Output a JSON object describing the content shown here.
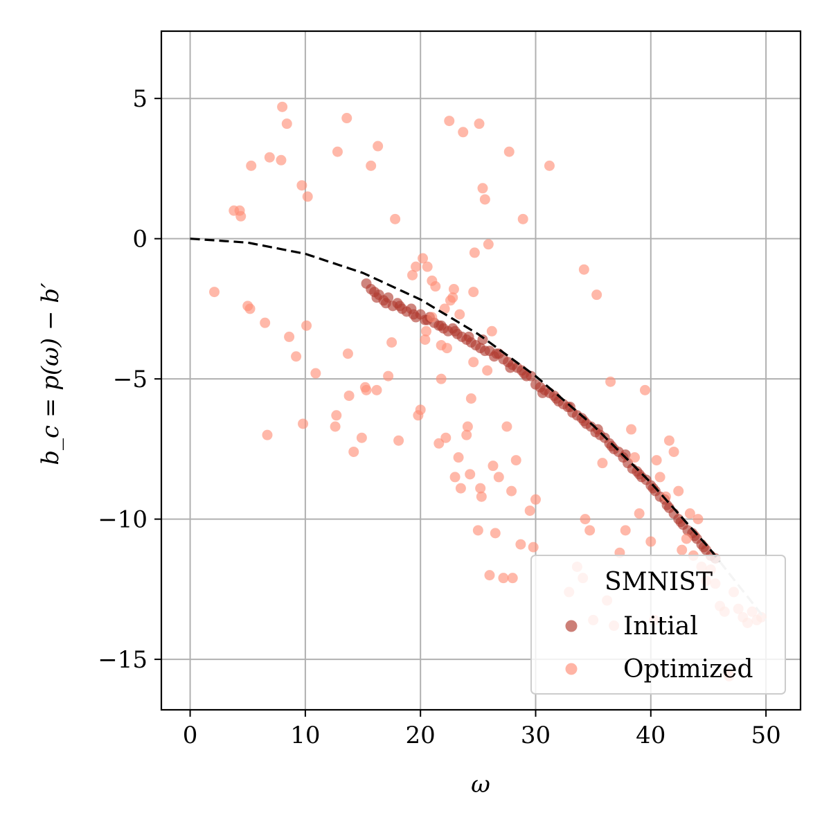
{
  "chart_data": {
    "type": "scatter",
    "xlabel": "ω",
    "ylabel": "b_c = p(ω) − b′",
    "xlim": [
      -2.5,
      53
    ],
    "ylim": [
      -16.8,
      7.4
    ],
    "xticks": [
      0,
      10,
      20,
      30,
      40,
      50
    ],
    "yticks": [
      5,
      0,
      -5,
      -10,
      -15
    ],
    "xtick_labels": [
      "0",
      "10",
      "20",
      "30",
      "40",
      "50"
    ],
    "ytick_labels": [
      "5",
      "0",
      "−5",
      "−10",
      "−15"
    ],
    "grid": true,
    "legend": {
      "title": "SMNIST",
      "placement": "lower-right",
      "entries": [
        "Initial",
        "Optimized"
      ]
    },
    "reference_curve": {
      "style": "dashed",
      "color": "#000000",
      "faded_color": "#c0c0c0",
      "x": [
        0,
        5,
        10,
        15,
        20,
        25,
        30,
        35,
        40,
        45,
        50
      ],
      "y": [
        0,
        -0.14,
        -0.54,
        -1.22,
        -2.17,
        -3.4,
        -4.9,
        -6.66,
        -8.7,
        -11.0,
        -13.6
      ]
    },
    "series": [
      {
        "name": "Initial",
        "color": "#b03a2e",
        "x": [
          15.3,
          15.7,
          16.0,
          16.4,
          16.8,
          17.2,
          17.6,
          18.0,
          18.4,
          18.8,
          19.2,
          19.6,
          20.0,
          20.4,
          20.8,
          21.2,
          21.6,
          22.0,
          22.4,
          22.8,
          23.2,
          23.6,
          24.0,
          24.4,
          24.8,
          25.2,
          25.6,
          26.0,
          26.4,
          26.8,
          27.2,
          27.6,
          28.0,
          28.4,
          28.8,
          29.2,
          29.6,
          30.0,
          30.4,
          30.8,
          31.2,
          31.6,
          32.0,
          32.4,
          32.8,
          33.2,
          33.6,
          34.0,
          34.4,
          34.8,
          35.2,
          35.6,
          36.0,
          36.4,
          36.8,
          37.2,
          37.6,
          38.0,
          38.4,
          38.8,
          39.2,
          39.6,
          40.0,
          40.4,
          40.8,
          41.2,
          41.6,
          42.0,
          42.4,
          42.8,
          43.2,
          43.6,
          44.0,
          44.4,
          44.8,
          45.2,
          45.6,
          16.2,
          17.0,
          18.2,
          19.4,
          20.6,
          21.8,
          23.0,
          24.2,
          25.4,
          26.6,
          27.8,
          29.0,
          30.6,
          31.8,
          33.0,
          34.2,
          35.4,
          36.6,
          37.8,
          39.0,
          40.2,
          41.4,
          42.6,
          43.8,
          44.6
        ],
        "y": [
          -1.6,
          -1.8,
          -1.9,
          -2.0,
          -2.2,
          -2.1,
          -2.4,
          -2.3,
          -2.5,
          -2.6,
          -2.5,
          -2.8,
          -2.7,
          -2.9,
          -2.8,
          -3.0,
          -3.1,
          -3.2,
          -3.3,
          -3.2,
          -3.4,
          -3.5,
          -3.6,
          -3.7,
          -3.8,
          -3.9,
          -4.0,
          -4.0,
          -4.2,
          -4.1,
          -4.3,
          -4.4,
          -4.5,
          -4.6,
          -4.7,
          -4.9,
          -4.9,
          -5.2,
          -5.3,
          -5.4,
          -5.5,
          -5.6,
          -5.8,
          -5.9,
          -6.0,
          -6.2,
          -6.3,
          -6.4,
          -6.6,
          -6.7,
          -6.9,
          -7.0,
          -7.1,
          -7.3,
          -7.5,
          -7.6,
          -7.8,
          -8.0,
          -8.2,
          -8.3,
          -8.5,
          -8.6,
          -8.8,
          -9.0,
          -9.2,
          -9.3,
          -9.6,
          -9.8,
          -10.0,
          -10.2,
          -10.4,
          -10.5,
          -10.7,
          -10.9,
          -11.1,
          -11.3,
          -11.4,
          -2.1,
          -2.3,
          -2.4,
          -2.7,
          -2.9,
          -3.1,
          -3.3,
          -3.5,
          -3.6,
          -4.1,
          -4.6,
          -4.8,
          -5.5,
          -5.7,
          -6.0,
          -6.5,
          -6.8,
          -7.4,
          -7.7,
          -8.4,
          -8.9,
          -9.5,
          -10.1,
          -10.6,
          -11.0
        ]
      },
      {
        "name": "Optimized",
        "color": "#ff8c75",
        "x": [
          2.1,
          3.8,
          4.3,
          4.4,
          5.0,
          5.2,
          5.3,
          6.5,
          6.7,
          6.9,
          7.9,
          8.0,
          8.4,
          8.6,
          9.2,
          9.7,
          9.8,
          10.1,
          10.2,
          10.9,
          12.6,
          12.7,
          12.8,
          13.6,
          13.7,
          13.8,
          14.2,
          14.9,
          15.2,
          15.3,
          15.7,
          16.2,
          16.3,
          17.2,
          17.5,
          17.8,
          18.1,
          19.3,
          19.6,
          19.8,
          20.0,
          20.2,
          20.4,
          20.6,
          21.0,
          21.3,
          21.6,
          21.8,
          22.2,
          22.3,
          22.5,
          22.8,
          22.9,
          23.0,
          23.3,
          23.5,
          23.7,
          24.0,
          24.1,
          24.3,
          24.4,
          24.6,
          24.7,
          25.0,
          25.1,
          25.2,
          25.3,
          25.4,
          25.6,
          25.9,
          26.0,
          26.3,
          26.5,
          26.8,
          27.2,
          27.5,
          27.7,
          27.9,
          28.0,
          28.3,
          28.7,
          28.9,
          29.5,
          29.8,
          30.0,
          31.2,
          32.9,
          33.6,
          34.1,
          34.2,
          34.3,
          34.7,
          35.0,
          35.3,
          35.8,
          36.2,
          36.5,
          36.8,
          37.3,
          37.8,
          38.3,
          38.6,
          39.0,
          39.5,
          40.0,
          40.3,
          40.5,
          40.8,
          41.3,
          41.6,
          42.0,
          42.4,
          42.7,
          43.1,
          43.4,
          43.7,
          44.1,
          44.4,
          44.8,
          45.2,
          45.6,
          46.0,
          46.4,
          46.8,
          47.2,
          47.6,
          48.0,
          48.4,
          48.8,
          49.2,
          49.6,
          21.0,
          21.8,
          22.6,
          23.4,
          24.6,
          25.8,
          26.2,
          46.7,
          20.5,
          22.1
        ],
        "y": [
          -1.9,
          1.0,
          1.0,
          0.8,
          -2.4,
          -2.5,
          2.6,
          -3.0,
          -7.0,
          2.9,
          2.8,
          4.7,
          4.1,
          -3.5,
          -4.2,
          1.9,
          -6.6,
          -3.1,
          1.5,
          -4.8,
          -6.7,
          -6.3,
          3.1,
          4.3,
          -4.1,
          -5.6,
          -7.6,
          -7.1,
          -5.3,
          -5.4,
          2.6,
          -5.4,
          3.3,
          -4.9,
          -3.7,
          0.7,
          -7.2,
          -1.3,
          -1.0,
          -6.3,
          -6.1,
          -0.7,
          -3.6,
          -1.0,
          -1.5,
          -1.7,
          -7.3,
          -5.0,
          -7.1,
          -3.9,
          4.2,
          -2.1,
          -1.8,
          -8.5,
          -7.8,
          -8.9,
          3.8,
          -7.0,
          -6.7,
          -8.4,
          -5.7,
          -1.9,
          -0.5,
          -10.4,
          4.1,
          -8.9,
          -9.2,
          1.8,
          1.4,
          -0.2,
          -12.0,
          -8.1,
          -10.5,
          -8.5,
          -12.1,
          -6.7,
          3.1,
          -9.0,
          -12.1,
          -7.9,
          -10.9,
          0.7,
          -9.7,
          -11.0,
          -9.3,
          2.6,
          -12.6,
          -11.7,
          -12.1,
          -1.1,
          -10.0,
          -10.4,
          -13.6,
          -2.0,
          -8.0,
          -12.9,
          -5.1,
          -13.8,
          -11.2,
          -10.4,
          -6.8,
          -7.8,
          -9.8,
          -5.4,
          -10.8,
          -13.6,
          -7.9,
          -8.5,
          -9.2,
          -7.2,
          -7.6,
          -9.0,
          -11.1,
          -10.7,
          -9.8,
          -11.3,
          -10.0,
          -11.7,
          -12.2,
          -11.8,
          -12.3,
          -13.1,
          -13.3,
          -15.6,
          -12.6,
          -13.2,
          -13.5,
          -13.7,
          -13.3,
          -13.6,
          -13.5,
          -2.8,
          -3.8,
          -2.2,
          -2.7,
          -4.4,
          -4.7,
          -3.3,
          -15.5,
          -3.3,
          -2.5
        ]
      }
    ]
  }
}
